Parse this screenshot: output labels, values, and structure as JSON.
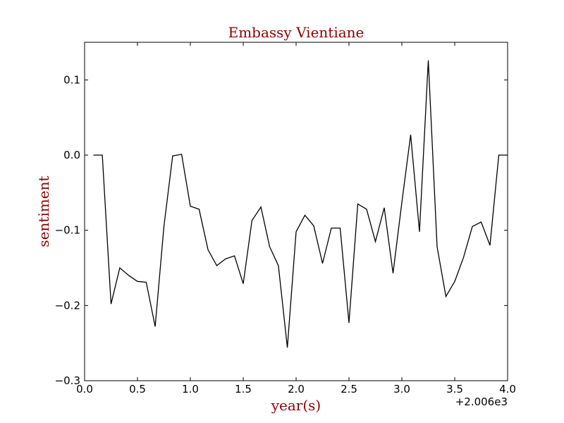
{
  "chart_data": {
    "type": "line",
    "title": "Embassy Vientiane",
    "xlabel": "year(s)",
    "ylabel": "sentiment",
    "x_offset_label": "+2.006e3",
    "xlim": [
      0.0,
      4.0
    ],
    "ylim": [
      -0.3,
      0.15
    ],
    "x_ticks": [
      0.0,
      0.5,
      1.0,
      1.5,
      2.0,
      2.5,
      3.0,
      3.5,
      4.0
    ],
    "x_tick_labels": [
      "0.0",
      "0.5",
      "1.0",
      "1.5",
      "2.0",
      "2.5",
      "3.0",
      "3.5",
      "4.0"
    ],
    "y_ticks": [
      -0.3,
      -0.2,
      -0.1,
      0.0,
      0.1
    ],
    "y_tick_labels": [
      "−0.3",
      "−0.2",
      "−0.1",
      "0.0",
      "0.1"
    ],
    "grid": false,
    "colors": {
      "line": "#000000",
      "title": "#8b0000",
      "axis_label": "#8b0000"
    },
    "series": [
      {
        "x": [
          0.083,
          0.167,
          0.25,
          0.333,
          0.417,
          0.5,
          0.583,
          0.667,
          0.75,
          0.833,
          0.917,
          1.0,
          1.083,
          1.167,
          1.25,
          1.333,
          1.417,
          1.5,
          1.583,
          1.667,
          1.75,
          1.833,
          1.917,
          2.0,
          2.083,
          2.167,
          2.25,
          2.333,
          2.417,
          2.5,
          2.583,
          2.667,
          2.75,
          2.833,
          2.917,
          3.0,
          3.083,
          3.167,
          3.25,
          3.333,
          3.417,
          3.5,
          3.583,
          3.667,
          3.75,
          3.833,
          3.917,
          4.0
        ],
        "y": [
          0.0,
          0.0,
          -0.198,
          -0.15,
          -0.16,
          -0.168,
          -0.169,
          -0.228,
          -0.095,
          -0.001,
          0.001,
          -0.068,
          -0.072,
          -0.126,
          -0.147,
          -0.138,
          -0.134,
          -0.171,
          -0.087,
          -0.069,
          -0.122,
          -0.147,
          -0.256,
          -0.102,
          -0.08,
          -0.094,
          -0.144,
          -0.097,
          -0.097,
          -0.223,
          -0.065,
          -0.072,
          -0.115,
          -0.07,
          -0.157,
          -0.063,
          0.027,
          -0.102,
          0.126,
          -0.122,
          -0.188,
          -0.168,
          -0.136,
          -0.095,
          -0.089,
          -0.12,
          0.0,
          0.0
        ]
      }
    ]
  }
}
